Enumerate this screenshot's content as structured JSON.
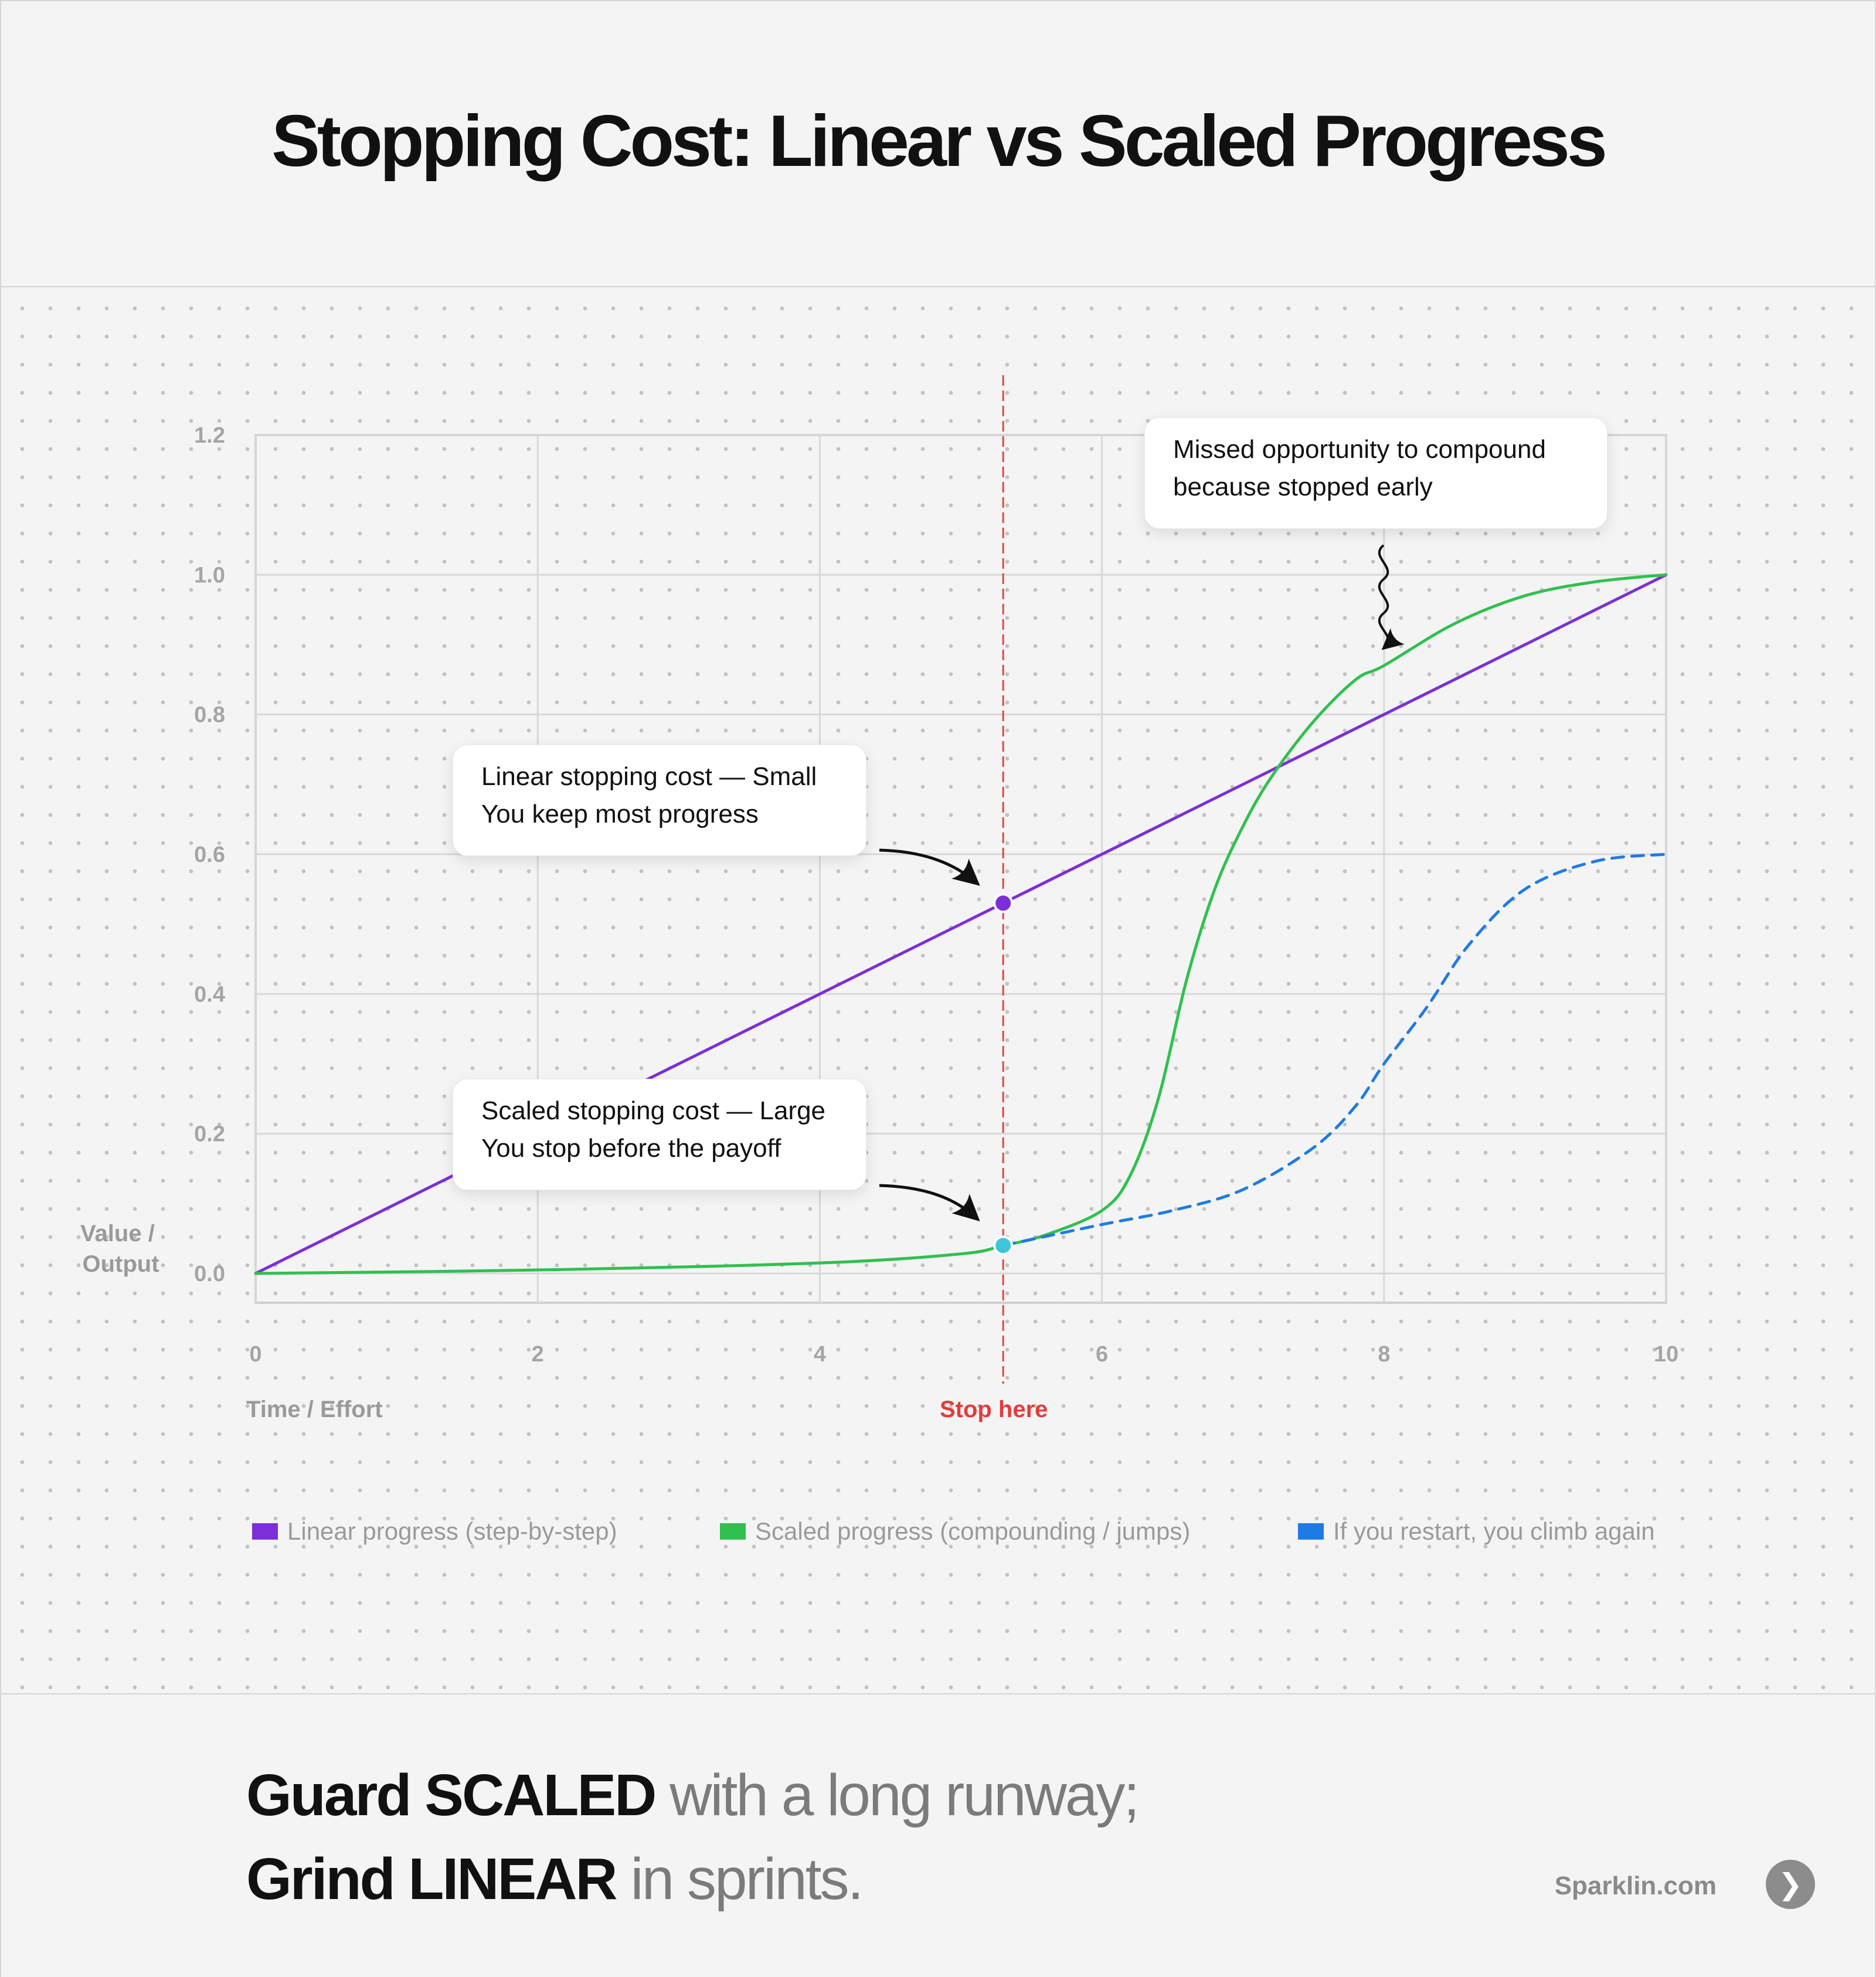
{
  "header": {
    "title": "Stopping Cost: Linear vs Scaled Progress"
  },
  "chart_data": {
    "type": "line",
    "xlabel": "Time / Effort",
    "ylabel": "Value / Output",
    "xlim": [
      0,
      10
    ],
    "ylim": [
      0,
      1.2
    ],
    "xticks": [
      "0",
      "2",
      "4",
      "6",
      "8",
      "10"
    ],
    "yticks": [
      "0.0",
      "0.2",
      "0.4",
      "0.6",
      "0.8",
      "1.0",
      "1.2"
    ],
    "grid": true,
    "stop_x": 5.3,
    "stop_label": "Stop here",
    "series": [
      {
        "name": "Linear progress (step-by-step)",
        "color": "#7c2fd8",
        "style": "solid",
        "x": [
          0,
          10
        ],
        "y": [
          0,
          1.0
        ]
      },
      {
        "name": "Scaled progress (compounding / jumps)",
        "color": "#30c04f",
        "style": "solid",
        "x": [
          0,
          2,
          4,
          5,
          5.3,
          5.6,
          6.0,
          6.2,
          6.4,
          6.6,
          6.8,
          7.0,
          7.2,
          7.5,
          7.8,
          8.0,
          8.5,
          9.0,
          9.5,
          10
        ],
        "y": [
          0.0,
          0.005,
          0.015,
          0.028,
          0.04,
          0.055,
          0.09,
          0.14,
          0.25,
          0.42,
          0.55,
          0.64,
          0.71,
          0.79,
          0.85,
          0.87,
          0.93,
          0.97,
          0.99,
          1.0
        ]
      },
      {
        "name": "If you restart, you climb again",
        "color": "#1e7be5",
        "style": "dashed",
        "x": [
          5.3,
          6.0,
          6.5,
          7.0,
          7.5,
          7.8,
          8.0,
          8.3,
          8.6,
          9.0,
          9.5,
          10
        ],
        "y": [
          0.04,
          0.07,
          0.09,
          0.12,
          0.18,
          0.24,
          0.3,
          0.38,
          0.47,
          0.55,
          0.59,
          0.6
        ]
      }
    ],
    "markers": [
      {
        "x": 5.3,
        "y": 0.53,
        "color": "#7c2fd8"
      },
      {
        "x": 5.3,
        "y": 0.04,
        "color": "#3cc6d9"
      }
    ],
    "annotations": [
      {
        "lines": [
          "Missed opportunity to compound",
          "because stopped early"
        ]
      },
      {
        "lines": [
          "Linear stopping cost — Small",
          "You keep most progress"
        ]
      },
      {
        "lines": [
          "Scaled stopping cost — Large",
          "You stop before the payoff"
        ]
      }
    ]
  },
  "footer": {
    "line1_strong": "Guard SCALED",
    "line1_soft": " with a long runway;",
    "line2_strong": "Grind LINEAR",
    "line2_soft": " in sprints.",
    "brand": "Sparklin.com",
    "brand_icon": "chevron-right-icon",
    "brand_glyph": "❯"
  }
}
